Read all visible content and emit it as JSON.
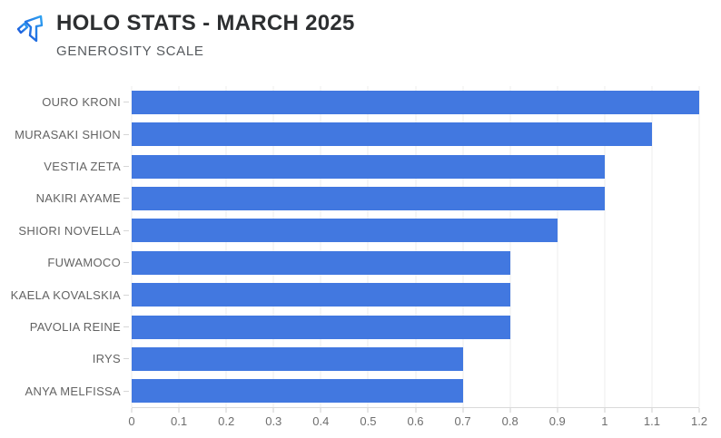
{
  "header": {
    "title": "HOLO STATS - MARCH 2025",
    "subtitle": "GENEROSITY SCALE",
    "logo_icon": "holo-logo",
    "logo_colors": {
      "dark": "#1b55d9",
      "light": "#2fa3f2"
    }
  },
  "chart_data": {
    "type": "bar",
    "orientation": "horizontal",
    "title": "HOLO STATS - MARCH 2025",
    "subtitle": "GENEROSITY SCALE",
    "categories": [
      "OURO KRONI",
      "MURASAKI SHION",
      "VESTIA ZETA",
      "NAKIRI AYAME",
      "SHIORI NOVELLA",
      "FUWAMOCO",
      "KAELA KOVALSKIA",
      "PAVOLIA REINE",
      "IRYS",
      "ANYA MELFISSA"
    ],
    "values": [
      1.2,
      1.1,
      1.0,
      1.0,
      0.9,
      0.8,
      0.8,
      0.8,
      0.7,
      0.7
    ],
    "xlabel": "",
    "ylabel": "",
    "xlim": [
      0,
      1.2
    ],
    "xticks": [
      0,
      0.1,
      0.2,
      0.3,
      0.4,
      0.5,
      0.6,
      0.7,
      0.8,
      0.9,
      1,
      1.1,
      1.2
    ],
    "xtick_labels": [
      "0",
      "0.1",
      "0.2",
      "0.3",
      "0.4",
      "0.5",
      "0.6",
      "0.7",
      "0.8",
      "0.9",
      "1",
      "1.1",
      "1.2"
    ],
    "grid": "vertical",
    "legend": false,
    "bar_color": "#4278e0"
  },
  "colors": {
    "background": "#ffffff",
    "bar": "#4278e0",
    "gridline": "#ececec",
    "axis_line": "#d9d9d9",
    "title_text": "#2d2f31",
    "subtitle_text": "#565a5e",
    "category_text": "#636363",
    "tick_text": "#6e6e6e"
  }
}
